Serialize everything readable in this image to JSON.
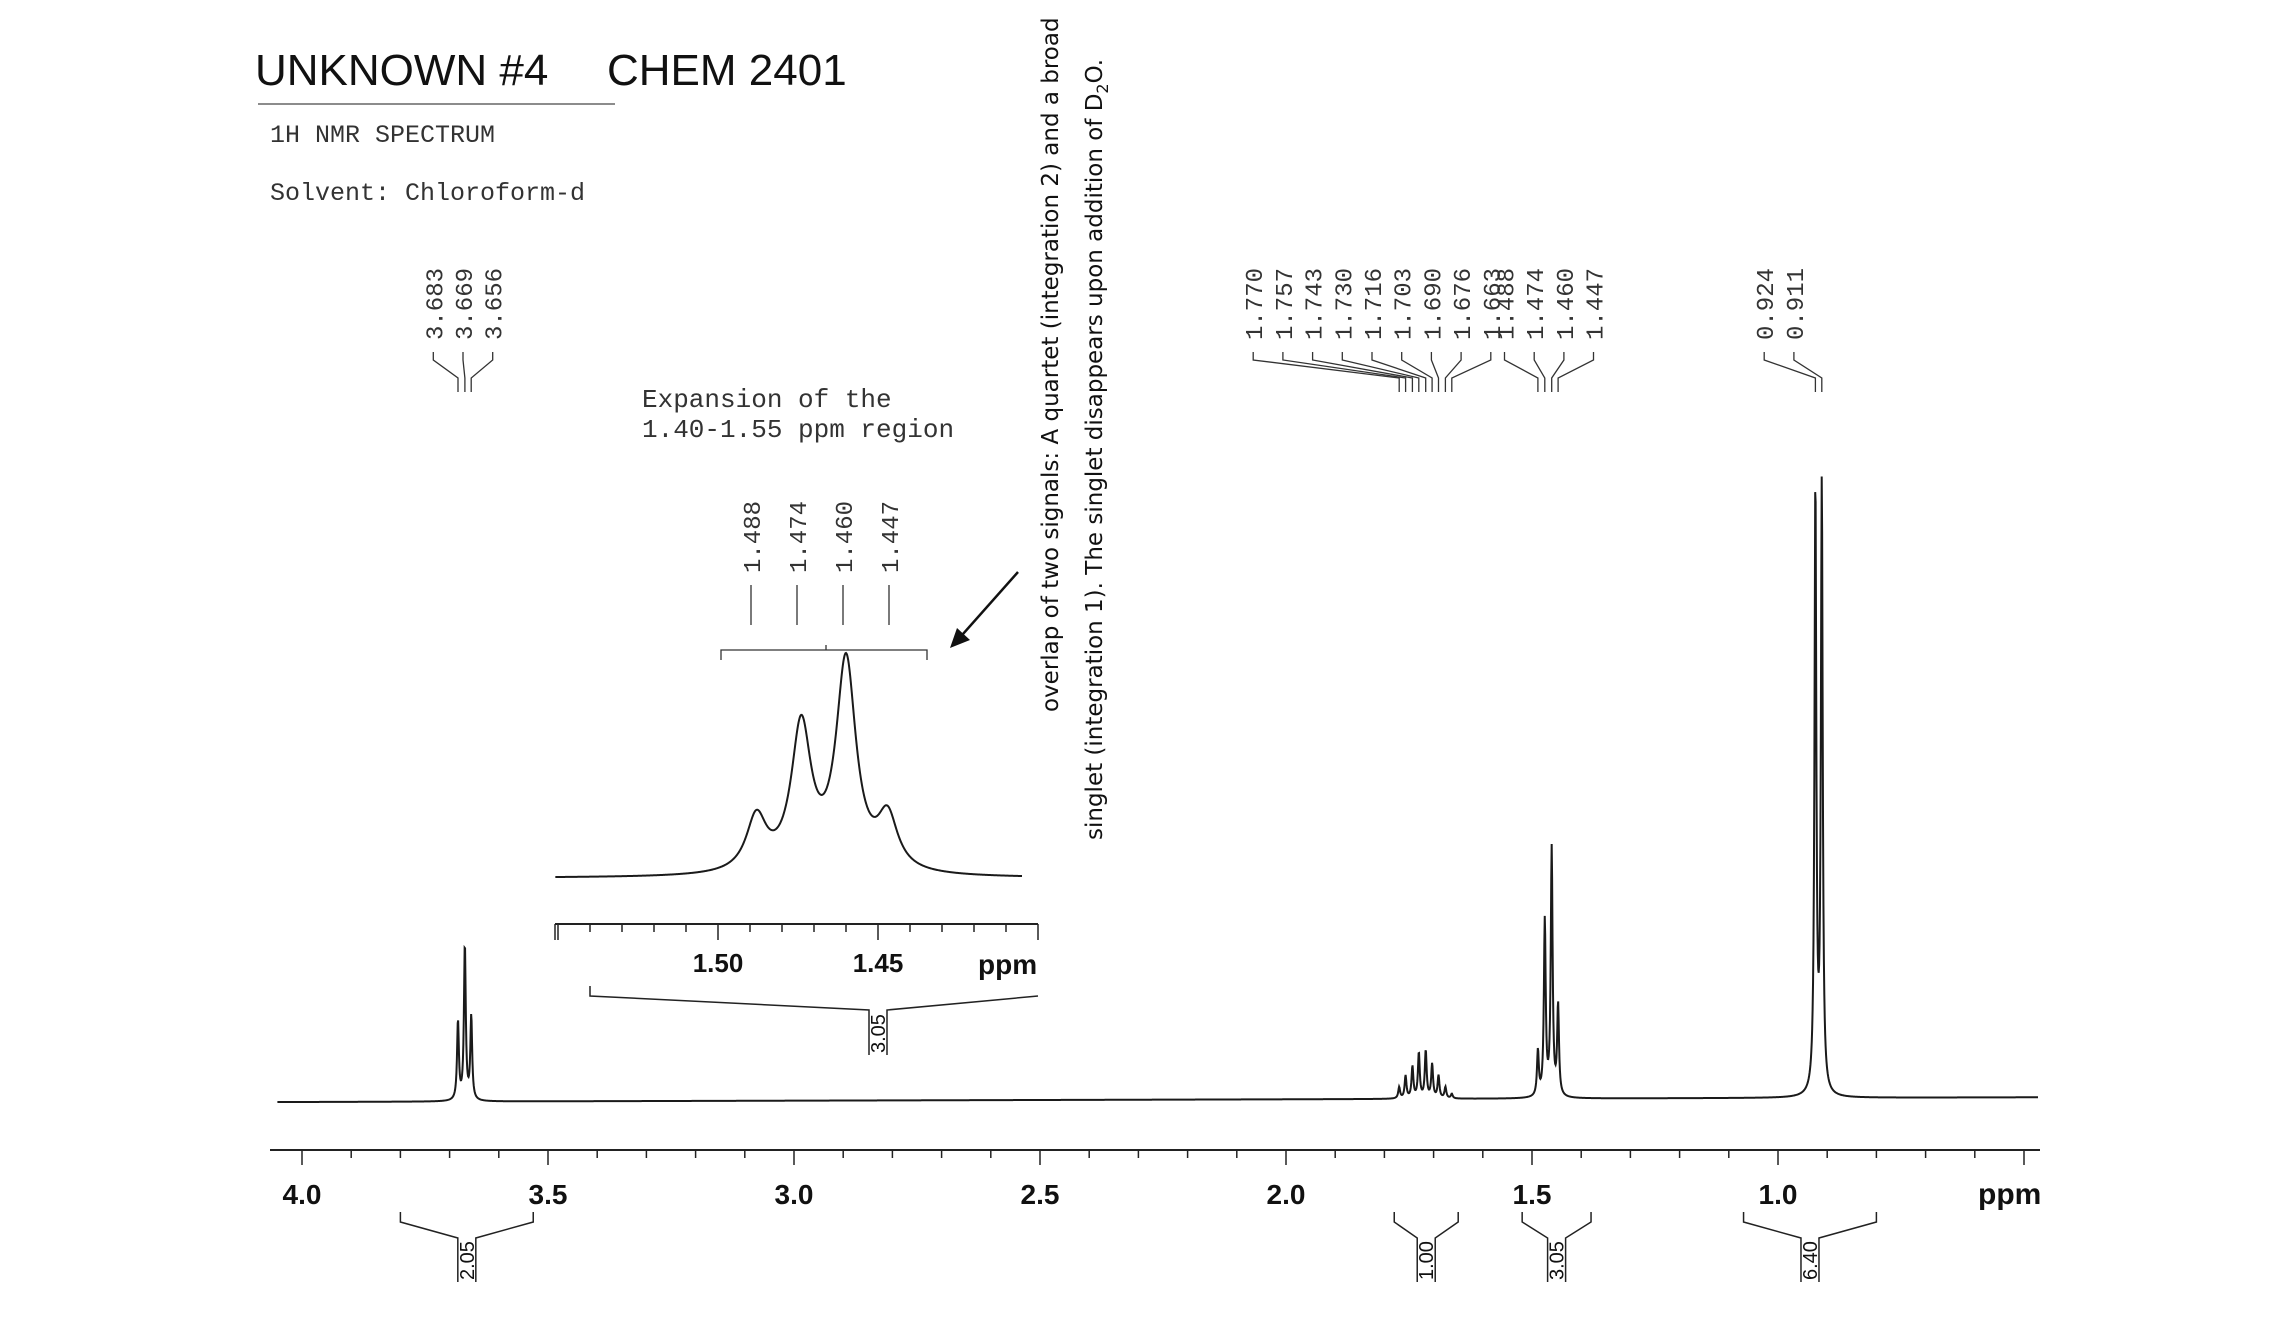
{
  "header": {
    "title_unknown": "UNKNOWN #4",
    "title_course": "CHEM 2401",
    "spectrum_type": "1H NMR SPECTRUM",
    "solvent": "Solvent: Chloroform-d"
  },
  "annotation": {
    "line1": "overlap of two signals: A quartet (integration 2) and a broad",
    "line2_a": "singlet (integration 1).  The singlet disappears upon addition of D",
    "line2_sub": "2",
    "line2_b": "O."
  },
  "chart_data": [
    {
      "type": "line",
      "title": "1H NMR SPECTRUM",
      "xlabel": "ppm",
      "ylabel": "",
      "x_reversed": true,
      "xlim": [
        4.05,
        0.35
      ],
      "ticks": [
        {
          "value": 4.0,
          "label": "4.0"
        },
        {
          "value": 3.5,
          "label": "3.5"
        },
        {
          "value": 3.0,
          "label": "3.0"
        },
        {
          "value": 2.5,
          "label": "2.5"
        },
        {
          "value": 2.0,
          "label": "2.0"
        },
        {
          "value": 1.5,
          "label": "1.5"
        },
        {
          "value": 1.0,
          "label": "1.0"
        }
      ],
      "peaks": [
        {
          "ppm": 3.683,
          "height": 0.35
        },
        {
          "ppm": 3.669,
          "height": 0.69
        },
        {
          "ppm": 3.656,
          "height": 0.37
        },
        {
          "ppm": 1.77,
          "height": 0.05
        },
        {
          "ppm": 1.757,
          "height": 0.1
        },
        {
          "ppm": 1.743,
          "height": 0.14
        },
        {
          "ppm": 1.73,
          "height": 0.2
        },
        {
          "ppm": 1.716,
          "height": 0.21
        },
        {
          "ppm": 1.703,
          "height": 0.15
        },
        {
          "ppm": 1.69,
          "height": 0.1
        },
        {
          "ppm": 1.676,
          "height": 0.05
        },
        {
          "ppm": 1.663,
          "height": 0.02
        },
        {
          "ppm": 1.488,
          "height": 0.2
        },
        {
          "ppm": 1.474,
          "height": 0.78
        },
        {
          "ppm": 1.46,
          "height": 1.1
        },
        {
          "ppm": 1.447,
          "height": 0.4
        },
        {
          "ppm": 0.924,
          "height": 2.7
        },
        {
          "ppm": 0.911,
          "height": 2.7
        }
      ],
      "peak_labels": [
        {
          "group": "3.68",
          "labels": [
            "3.683",
            "3.669",
            "3.656"
          ]
        },
        {
          "group": "1.72",
          "labels": [
            "1.770",
            "1.757",
            "1.743",
            "1.730",
            "1.716",
            "1.703",
            "1.690",
            "1.676",
            "1.663"
          ]
        },
        {
          "group": "1.47",
          "labels": [
            "1.488",
            "1.474",
            "1.460",
            "1.447"
          ]
        },
        {
          "group": "0.92",
          "labels": [
            "0.924",
            "0.911"
          ]
        }
      ],
      "integrations": [
        {
          "from": 3.8,
          "to": 3.53,
          "value": "2.05"
        },
        {
          "from": 1.78,
          "to": 1.65,
          "value": "1.00"
        },
        {
          "from": 1.52,
          "to": 1.38,
          "value": "3.05"
        },
        {
          "from": 1.07,
          "to": 0.8,
          "value": "6.40"
        }
      ]
    },
    {
      "type": "line",
      "title": "Expansion of the 1.40-1.55 ppm region",
      "title_line1": "Expansion of the",
      "title_line2": "1.40-1.55 ppm region",
      "xlabel": "ppm",
      "x_reversed": true,
      "xlim": [
        1.555,
        1.405
      ],
      "ticks": [
        {
          "value": 1.5,
          "label": "1.50"
        },
        {
          "value": 1.45,
          "label": "1.45"
        }
      ],
      "peaks": [
        {
          "ppm": 1.488,
          "height": 0.36
        },
        {
          "ppm": 1.474,
          "height": 0.96
        },
        {
          "ppm": 1.46,
          "height": 1.4
        },
        {
          "ppm": 1.447,
          "height": 0.35
        }
      ],
      "peak_labels": [
        "1.488",
        "1.474",
        "1.460",
        "1.447"
      ],
      "integration": {
        "from": 1.54,
        "to": 1.405,
        "value": "3.05"
      }
    }
  ]
}
